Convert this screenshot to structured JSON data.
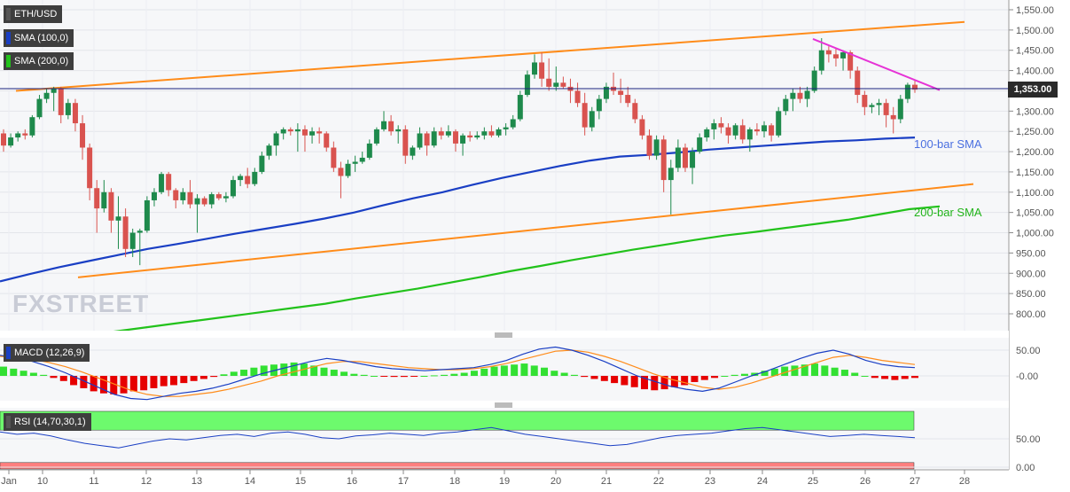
{
  "instrument": "ETH/USD",
  "indicators": {
    "sma100": "SMA (100,0)",
    "sma200": "SMA (200,0)",
    "macd": "MACD (12,26,9)",
    "rsi": "RSI (14,70,30,1)"
  },
  "annotations": {
    "sma100_label": "100-bar SMA",
    "sma200_label": "200-bar SMA"
  },
  "watermark": "FXSTREET",
  "colors": {
    "up": "#1e8a4c",
    "down": "#d9534f",
    "sma100": "#1a3fc4",
    "sma200": "#22c21b",
    "channel": "#ff8c1a",
    "trend": "#e633d6",
    "price_line": "#1a237e",
    "macd_line": "#1a3fc4",
    "signal_line": "#ff8c1a",
    "hist_pos": "#33e033",
    "hist_neg": "#e60000",
    "rsi_over": "#6dfa6d",
    "rsi_under": "#ff7f7f"
  },
  "chart_data": {
    "type": "candlestick",
    "current_price": "1,353.00",
    "y_ticks": [
      "1,550.00",
      "1,500.00",
      "1,450.00",
      "1,400.00",
      "1,350.00",
      "1,300.00",
      "1,250.00",
      "1,200.00",
      "1,150.00",
      "1,100.00",
      "1,050.00",
      "1,000.00",
      "950.00",
      "900.00",
      "850.00",
      "800.00"
    ],
    "x_ticks": [
      "Jan",
      "10",
      "11",
      "12",
      "13",
      "14",
      "15",
      "16",
      "17",
      "18",
      "19",
      "20",
      "21",
      "22",
      "23",
      "24",
      "25",
      "26",
      "27",
      "28"
    ],
    "candles": [
      [
        1245,
        1255,
        1200,
        1215
      ],
      [
        1215,
        1245,
        1210,
        1235
      ],
      [
        1235,
        1250,
        1225,
        1245
      ],
      [
        1245,
        1255,
        1230,
        1240
      ],
      [
        1240,
        1290,
        1235,
        1285
      ],
      [
        1285,
        1340,
        1280,
        1330
      ],
      [
        1330,
        1355,
        1320,
        1345
      ],
      [
        1345,
        1360,
        1300,
        1355
      ],
      [
        1355,
        1360,
        1270,
        1290
      ],
      [
        1290,
        1330,
        1280,
        1320
      ],
      [
        1320,
        1330,
        1250,
        1270
      ],
      [
        1270,
        1290,
        1180,
        1210
      ],
      [
        1210,
        1220,
        1080,
        1110
      ],
      [
        1110,
        1130,
        1000,
        1060
      ],
      [
        1060,
        1130,
        1050,
        1100
      ],
      [
        1100,
        1110,
        1000,
        1030
      ],
      [
        1030,
        1090,
        960,
        1040
      ],
      [
        1040,
        1060,
        940,
        960
      ],
      [
        960,
        1010,
        940,
        1000
      ],
      [
        1000,
        1010,
        920,
        1005
      ],
      [
        1005,
        1090,
        1000,
        1080
      ],
      [
        1080,
        1110,
        1065,
        1100
      ],
      [
        1100,
        1150,
        1095,
        1145
      ],
      [
        1145,
        1150,
        1090,
        1105
      ],
      [
        1105,
        1110,
        1060,
        1080
      ],
      [
        1080,
        1110,
        1070,
        1100
      ],
      [
        1100,
        1130,
        1060,
        1070
      ],
      [
        1070,
        1095,
        1000,
        1085
      ],
      [
        1085,
        1090,
        1065,
        1070
      ],
      [
        1070,
        1100,
        1060,
        1095
      ],
      [
        1095,
        1100,
        1080,
        1085
      ],
      [
        1085,
        1100,
        1075,
        1090
      ],
      [
        1090,
        1140,
        1085,
        1130
      ],
      [
        1130,
        1145,
        1115,
        1140
      ],
      [
        1140,
        1160,
        1110,
        1120
      ],
      [
        1120,
        1160,
        1115,
        1150
      ],
      [
        1150,
        1200,
        1145,
        1190
      ],
      [
        1190,
        1220,
        1180,
        1215
      ],
      [
        1215,
        1250,
        1190,
        1245
      ],
      [
        1245,
        1260,
        1230,
        1255
      ],
      [
        1255,
        1260,
        1240,
        1250
      ],
      [
        1250,
        1270,
        1200,
        1255
      ],
      [
        1255,
        1265,
        1200,
        1240
      ],
      [
        1240,
        1260,
        1220,
        1250
      ],
      [
        1250,
        1260,
        1220,
        1245
      ],
      [
        1245,
        1250,
        1200,
        1210
      ],
      [
        1210,
        1225,
        1150,
        1160
      ],
      [
        1160,
        1175,
        1085,
        1140
      ],
      [
        1140,
        1180,
        1135,
        1170
      ],
      [
        1170,
        1190,
        1150,
        1175
      ],
      [
        1175,
        1200,
        1170,
        1185
      ],
      [
        1185,
        1230,
        1180,
        1220
      ],
      [
        1220,
        1260,
        1215,
        1255
      ],
      [
        1255,
        1300,
        1250,
        1275
      ],
      [
        1275,
        1290,
        1240,
        1250
      ],
      [
        1250,
        1265,
        1220,
        1255
      ],
      [
        1255,
        1265,
        1170,
        1190
      ],
      [
        1190,
        1215,
        1180,
        1210
      ],
      [
        1210,
        1260,
        1205,
        1245
      ],
      [
        1245,
        1250,
        1190,
        1215
      ],
      [
        1215,
        1260,
        1210,
        1250
      ],
      [
        1250,
        1260,
        1230,
        1240
      ],
      [
        1240,
        1265,
        1235,
        1250
      ],
      [
        1250,
        1255,
        1200,
        1220
      ],
      [
        1220,
        1245,
        1190,
        1240
      ],
      [
        1240,
        1250,
        1225,
        1235
      ],
      [
        1235,
        1250,
        1230,
        1240
      ],
      [
        1240,
        1260,
        1230,
        1250
      ],
      [
        1250,
        1265,
        1235,
        1240
      ],
      [
        1240,
        1260,
        1235,
        1255
      ],
      [
        1255,
        1270,
        1240,
        1260
      ],
      [
        1260,
        1290,
        1255,
        1280
      ],
      [
        1280,
        1350,
        1275,
        1340
      ],
      [
        1340,
        1400,
        1335,
        1390
      ],
      [
        1390,
        1440,
        1380,
        1420
      ],
      [
        1420,
        1445,
        1360,
        1380
      ],
      [
        1380,
        1430,
        1350,
        1360
      ],
      [
        1360,
        1410,
        1350,
        1370
      ],
      [
        1370,
        1385,
        1355,
        1360
      ],
      [
        1360,
        1380,
        1320,
        1350
      ],
      [
        1350,
        1370,
        1310,
        1320
      ],
      [
        1320,
        1345,
        1240,
        1260
      ],
      [
        1260,
        1310,
        1250,
        1300
      ],
      [
        1300,
        1340,
        1280,
        1330
      ],
      [
        1330,
        1370,
        1320,
        1360
      ],
      [
        1360,
        1395,
        1340,
        1350
      ],
      [
        1350,
        1380,
        1320,
        1340
      ],
      [
        1340,
        1360,
        1310,
        1320
      ],
      [
        1320,
        1330,
        1270,
        1280
      ],
      [
        1280,
        1290,
        1230,
        1240
      ],
      [
        1240,
        1255,
        1180,
        1190
      ],
      [
        1190,
        1240,
        1180,
        1230
      ],
      [
        1230,
        1240,
        1100,
        1130
      ],
      [
        1130,
        1180,
        1045,
        1160
      ],
      [
        1160,
        1230,
        1150,
        1210
      ],
      [
        1210,
        1220,
        1150,
        1160
      ],
      [
        1160,
        1210,
        1120,
        1200
      ],
      [
        1200,
        1245,
        1195,
        1235
      ],
      [
        1235,
        1260,
        1225,
        1255
      ],
      [
        1255,
        1280,
        1230,
        1270
      ],
      [
        1270,
        1285,
        1245,
        1260
      ],
      [
        1260,
        1270,
        1220,
        1240
      ],
      [
        1240,
        1270,
        1230,
        1265
      ],
      [
        1265,
        1280,
        1220,
        1230
      ],
      [
        1230,
        1260,
        1200,
        1255
      ],
      [
        1255,
        1270,
        1240,
        1250
      ],
      [
        1250,
        1275,
        1235,
        1265
      ],
      [
        1265,
        1270,
        1225,
        1240
      ],
      [
        1240,
        1310,
        1235,
        1300
      ],
      [
        1300,
        1340,
        1290,
        1330
      ],
      [
        1330,
        1355,
        1300,
        1345
      ],
      [
        1345,
        1360,
        1320,
        1330
      ],
      [
        1330,
        1360,
        1310,
        1350
      ],
      [
        1350,
        1410,
        1345,
        1400
      ],
      [
        1400,
        1480,
        1390,
        1450
      ],
      [
        1450,
        1460,
        1420,
        1440
      ],
      [
        1440,
        1455,
        1410,
        1430
      ],
      [
        1430,
        1450,
        1400,
        1445
      ],
      [
        1445,
        1450,
        1380,
        1400
      ],
      [
        1400,
        1410,
        1320,
        1340
      ],
      [
        1340,
        1350,
        1290,
        1310
      ],
      [
        1310,
        1320,
        1295,
        1315
      ],
      [
        1315,
        1330,
        1290,
        1320
      ],
      [
        1320,
        1330,
        1260,
        1290
      ],
      [
        1290,
        1310,
        1245,
        1280
      ],
      [
        1280,
        1340,
        1270,
        1330
      ],
      [
        1330,
        1370,
        1320,
        1365
      ],
      [
        1365,
        1375,
        1345,
        1353
      ]
    ],
    "sma100": [
      880,
      898,
      915,
      930,
      945,
      960,
      972,
      985,
      998,
      1010,
      1022,
      1035,
      1050,
      1068,
      1085,
      1100,
      1118,
      1135,
      1150,
      1165,
      1178,
      1188,
      1192,
      1198,
      1205,
      1210,
      1215,
      1220,
      1225,
      1228,
      1232,
      1235
    ],
    "sma200": [
      745,
      755,
      765,
      775,
      785,
      795,
      805,
      815,
      825,
      838,
      850,
      862,
      876,
      890,
      905,
      918,
      932,
      945,
      958,
      970,
      982,
      993,
      1002,
      1012,
      1022,
      1032,
      1045,
      1058,
      1065
    ],
    "channel_upper": [
      [
        1355,
        "10"
      ],
      [
        1520,
        "27.5"
      ]
    ],
    "channel_lower": [
      [
        890,
        "10.8"
      ],
      [
        1120,
        "28.2"
      ]
    ],
    "trendline": [
      [
        1478,
        "25"
      ],
      [
        1352,
        "27.5"
      ]
    ],
    "macd": {
      "ticks": [
        "50.00",
        "-0.00"
      ],
      "hist": [
        18,
        14,
        10,
        6,
        2,
        -4,
        -10,
        -18,
        -24,
        -30,
        -34,
        -36,
        -34,
        -30,
        -28,
        -24,
        -20,
        -18,
        -14,
        -10,
        -6,
        -2,
        3,
        8,
        12,
        16,
        20,
        22,
        24,
        26,
        24,
        20,
        16,
        12,
        8,
        4,
        2,
        0,
        -1,
        -2,
        -2,
        -1,
        0,
        1,
        2,
        4,
        6,
        10,
        14,
        18,
        20,
        22,
        24,
        20,
        16,
        10,
        6,
        2,
        -2,
        -6,
        -10,
        -14,
        -18,
        -22,
        -26,
        -28,
        -26,
        -22,
        -18,
        -12,
        -8,
        -4,
        0,
        2,
        4,
        6,
        10,
        14,
        18,
        20,
        22,
        24,
        20,
        16,
        12,
        6,
        0,
        -4,
        -6,
        -8,
        -6,
        -4
      ],
      "macd_line": [
        40,
        36,
        28,
        18,
        6,
        -8,
        -22,
        -36,
        -44,
        -46,
        -40,
        -34,
        -30,
        -24,
        -16,
        -6,
        4,
        12,
        20,
        28,
        34,
        30,
        24,
        18,
        14,
        12,
        10,
        12,
        14,
        16,
        22,
        30,
        42,
        52,
        56,
        50,
        40,
        28,
        14,
        0,
        -10,
        -20,
        -26,
        -30,
        -24,
        -12,
        0,
        10,
        22,
        34,
        44,
        50,
        42,
        30,
        22,
        18,
        16
      ],
      "signal_line": [
        38,
        36,
        32,
        26,
        18,
        8,
        -4,
        -16,
        -28,
        -36,
        -40,
        -40,
        -36,
        -32,
        -26,
        -18,
        -10,
        0,
        8,
        16,
        24,
        28,
        28,
        24,
        20,
        16,
        14,
        12,
        12,
        14,
        18,
        24,
        32,
        40,
        48,
        50,
        46,
        38,
        28,
        16,
        4,
        -6,
        -14,
        -22,
        -26,
        -22,
        -14,
        -4,
        6,
        16,
        26,
        36,
        40,
        36,
        30,
        26,
        22
      ]
    },
    "rsi": {
      "ticks": [
        "50.00",
        "0.00"
      ],
      "values": [
        62,
        58,
        60,
        55,
        48,
        42,
        38,
        34,
        40,
        46,
        50,
        48,
        52,
        56,
        58,
        54,
        60,
        62,
        58,
        52,
        50,
        55,
        57,
        60,
        58,
        56,
        60,
        62,
        66,
        70,
        64,
        58,
        54,
        50,
        46,
        42,
        38,
        40,
        46,
        52,
        56,
        58,
        60,
        64,
        68,
        70,
        66,
        62,
        58,
        54,
        56,
        58,
        56,
        54,
        52
      ]
    }
  }
}
